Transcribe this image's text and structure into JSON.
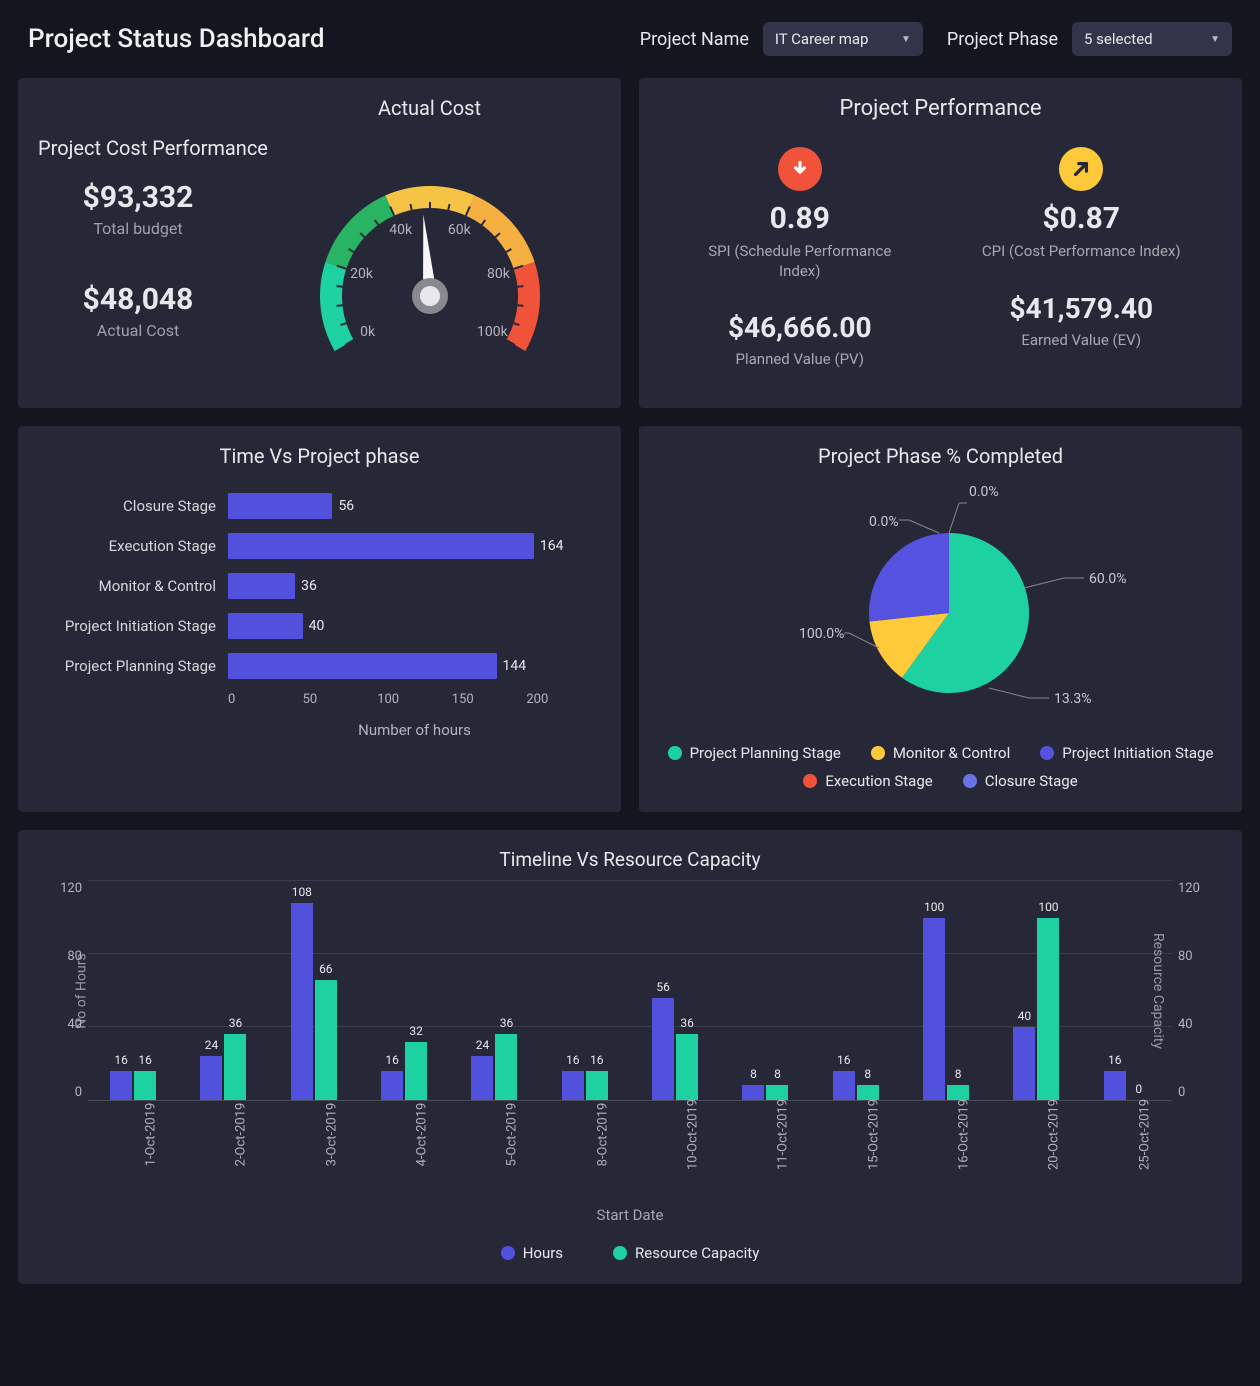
{
  "header": {
    "title": "Project Status Dashboard",
    "project_name_label": "Project Name",
    "project_name_value": "IT Career map",
    "project_phase_label": "Project Phase",
    "project_phase_value": "5 selected"
  },
  "colors": {
    "panel_bg": "#262837",
    "page_bg": "#13151f",
    "bar_blue": "#5251dd",
    "bar_teal": "#1dd1a1",
    "pie_teal": "#1dd1a1",
    "pie_yellow": "#feca3a",
    "pie_blue": "#5552e0",
    "pie_orange": "#f0533a",
    "pie_lightblue": "#6a72e8",
    "text_sub": "#a0a0a8",
    "grid": "rgba(120,124,140,0.25)"
  },
  "cost": {
    "left_title": "Project Cost Performance",
    "right_title": "Actual Cost",
    "total_budget_value": "$93,332",
    "total_budget_label": "Total budget",
    "actual_cost_value": "$48,048",
    "actual_cost_label": "Actual Cost",
    "gauge": {
      "min": 0,
      "max": 100000,
      "value": 48048,
      "ticks": [
        "0k",
        "20k",
        "40k",
        "60k",
        "80k",
        "100k"
      ],
      "segments": [
        {
          "from": 0,
          "to": 20000,
          "color": "#1dd1a1"
        },
        {
          "from": 20000,
          "to": 40000,
          "color": "#28b463"
        },
        {
          "from": 40000,
          "to": 60000,
          "color": "#f6c445"
        },
        {
          "from": 60000,
          "to": 80000,
          "color": "#f5b041"
        },
        {
          "from": 80000,
          "to": 100000,
          "color": "#f0533a"
        }
      ]
    }
  },
  "performance": {
    "title": "Project Performance",
    "spi": {
      "icon_color": "#f0533a",
      "icon_glyph_color": "#ffffff",
      "icon_type": "down",
      "value": "0.89",
      "label": "SPI (Schedule Performance Index)",
      "secondary_value": "$46,666.00",
      "secondary_label": "Planned Value (PV)"
    },
    "cpi": {
      "icon_color": "#feca3a",
      "icon_glyph_color": "#262837",
      "icon_type": "up-right",
      "value": "$0.87",
      "label": "CPI (Cost Performance Index)",
      "secondary_value": "$41,579.40",
      "secondary_label": "Earned Value (EV)"
    }
  },
  "time_phase": {
    "title": "Time Vs Project phase",
    "xlabel": "Number of hours",
    "xmax": 200,
    "xticks": [
      "0",
      "50",
      "100",
      "150",
      "200"
    ],
    "bar_color": "#5251dd",
    "rows": [
      {
        "label": "Closure Stage",
        "value": 56
      },
      {
        "label": "Execution Stage",
        "value": 164
      },
      {
        "label": "Monitor & Control",
        "value": 36
      },
      {
        "label": "Project Initiation Stage",
        "value": 40
      },
      {
        "label": "Project Planning Stage",
        "value": 144
      }
    ]
  },
  "phase_completed": {
    "title": "Project Phase % Completed",
    "slices": [
      {
        "label": "Project Planning Stage",
        "pct": 60.0,
        "color": "#1dd1a1",
        "leader": "60.0%"
      },
      {
        "label": "Monitor & Control",
        "pct": 13.3,
        "color": "#feca3a",
        "leader": "13.3%"
      },
      {
        "label": "Project Initiation Stage",
        "pct": 100.0,
        "visual_pct": 26.7,
        "color": "#5552e0",
        "leader": "100.0%"
      },
      {
        "label": "Execution Stage",
        "pct": 0.0,
        "color": "#f0533a",
        "leader": "0.0%"
      },
      {
        "label": "Closure Stage",
        "pct": 0.0,
        "color": "#6a72e8",
        "leader": "0.0%"
      }
    ],
    "leader_labels": [
      "60.0%",
      "13.3%",
      "100.0%",
      "0.0%",
      "0.0%"
    ]
  },
  "timeline": {
    "title": "Timeline Vs Resource Capacity",
    "y_label_left": "No of Hours",
    "y_label_right": "Resource Capacity",
    "x_label": "Start Date",
    "ymax": 120,
    "yticks": [
      "0",
      "40",
      "80",
      "120"
    ],
    "legend": [
      {
        "label": "Hours",
        "color": "#5251dd"
      },
      {
        "label": "Resource Capacity",
        "color": "#1dd1a1"
      }
    ],
    "data": [
      {
        "date": "1-Oct-2019",
        "hours": 16,
        "capacity": 16
      },
      {
        "date": "2-Oct-2019",
        "hours": 24,
        "capacity": 36
      },
      {
        "date": "3-Oct-2019",
        "hours": 108,
        "capacity": 66
      },
      {
        "date": "4-Oct-2019",
        "hours": 16,
        "capacity": 32
      },
      {
        "date": "5-Oct-2019",
        "hours": 24,
        "capacity": 36
      },
      {
        "date": "8-Oct-2019",
        "hours": 16,
        "capacity": 16
      },
      {
        "date": "10-Oct-2019",
        "hours": 56,
        "capacity": 36
      },
      {
        "date": "11-Oct-2019",
        "hours": 8,
        "capacity": 8
      },
      {
        "date": "15-Oct-2019",
        "hours": 16,
        "capacity": 8
      },
      {
        "date": "16-Oct-2019",
        "hours": 100,
        "capacity": 8
      },
      {
        "date": "20-Oct-2019",
        "hours": 40,
        "capacity": 100
      },
      {
        "date": "25-Oct-2019",
        "hours": 16,
        "capacity": 0
      }
    ]
  }
}
